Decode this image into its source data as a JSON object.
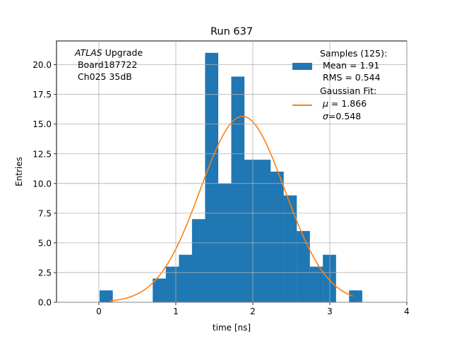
{
  "chart_data": {
    "type": "bar",
    "title": "Run 637",
    "xlabel": "time [ns]",
    "ylabel": "Entries",
    "xlim": [
      -0.55,
      4.0
    ],
    "ylim": [
      0,
      22
    ],
    "grid": true,
    "x_ticks": [
      0,
      1,
      2,
      3,
      4
    ],
    "y_ticks": [
      0.0,
      2.5,
      5.0,
      7.5,
      10.0,
      12.5,
      15.0,
      17.5,
      20.0
    ],
    "bin_width": 0.1667,
    "bins": [
      {
        "x0": 0.01,
        "count": 1
      },
      {
        "x0": 0.7,
        "count": 2
      },
      {
        "x0": 0.87,
        "count": 3
      },
      {
        "x0": 1.04,
        "count": 4
      },
      {
        "x0": 1.21,
        "count": 7
      },
      {
        "x0": 1.38,
        "count": 21
      },
      {
        "x0": 1.55,
        "count": 10
      },
      {
        "x0": 1.72,
        "count": 19
      },
      {
        "x0": 1.89,
        "count": 12
      },
      {
        "x0": 2.06,
        "count": 12
      },
      {
        "x0": 2.23,
        "count": 11
      },
      {
        "x0": 2.4,
        "count": 9
      },
      {
        "x0": 2.57,
        "count": 6
      },
      {
        "x0": 2.74,
        "count": 3
      },
      {
        "x0": 2.91,
        "count": 4
      },
      {
        "x0": 3.25,
        "count": 1
      }
    ],
    "fit": {
      "mu": 1.866,
      "sigma": 0.548,
      "amplitude": 15.65,
      "x_range": [
        0.15,
        3.3
      ]
    },
    "colors": {
      "hist": "#1f77b4",
      "fit": "#ff7f0e",
      "grid": "#b0b0b0"
    },
    "annotation": {
      "line1_italic": "ATLAS",
      "line1_rest": " Upgrade",
      "line2": " Board187722",
      "line3": " Ch025 35dB"
    },
    "legend": {
      "position": "top-right",
      "hist_lines": [
        "Samples (125):",
        " Mean = 1.91",
        " RMS = 0.544"
      ],
      "fit_title": "Gaussian Fit:",
      "fit_mu_symbol": "μ",
      "fit_mu_value": " = 1.866",
      "fit_sigma_symbol": "σ",
      "fit_sigma_value": "=0.548"
    }
  }
}
